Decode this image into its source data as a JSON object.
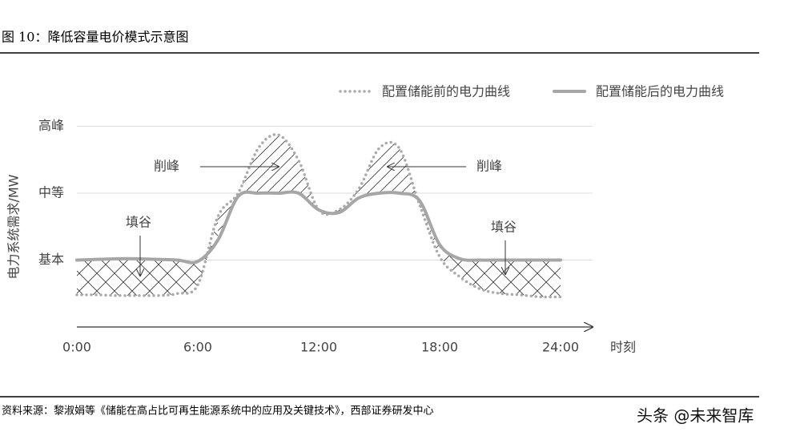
{
  "header": {
    "title": "图 10：降低容量电价模式示意图"
  },
  "chart_data": {
    "type": "line",
    "legend": "top-right",
    "x": [
      0,
      1,
      2,
      3,
      4,
      5,
      6,
      7,
      8,
      9,
      10,
      11,
      12,
      13,
      14,
      15,
      16,
      17,
      18,
      19,
      20,
      21,
      22,
      23,
      24
    ],
    "series": [
      {
        "name": "配置储能前的电力曲线",
        "color": "#aaaaaa",
        "style": "dotted",
        "values": [
          0.48,
          0.48,
          0.47,
          0.47,
          0.47,
          0.5,
          0.63,
          1.65,
          2.0,
          2.67,
          2.87,
          2.49,
          1.75,
          1.75,
          2.07,
          2.67,
          2.67,
          1.83,
          1.05,
          0.75,
          0.57,
          0.5,
          0.48,
          0.45,
          0.45
        ]
      },
      {
        "name": "配置储能后的电力曲线",
        "color": "#a6a6a6",
        "style": "solid",
        "values": [
          1.0,
          1.01,
          1.02,
          1.02,
          1.01,
          1.0,
          0.98,
          1.3,
          1.95,
          2.0,
          2.0,
          2.0,
          1.75,
          1.71,
          1.93,
          2.0,
          2.0,
          1.89,
          1.23,
          1.02,
          1.0,
          1.0,
          1.0,
          1.0,
          1.0
        ]
      }
    ],
    "xlim": [
      0,
      24
    ],
    "ylim": [
      0,
      3.2
    ],
    "xticks": [
      {
        "value": 0,
        "label": "0:00"
      },
      {
        "value": 6,
        "label": "6:00"
      },
      {
        "value": 12,
        "label": "12:00"
      },
      {
        "value": 18,
        "label": "18:00"
      },
      {
        "value": 24,
        "label": "24:00"
      }
    ],
    "yticks": [
      {
        "value": 1,
        "label": "基本"
      },
      {
        "value": 2,
        "label": "中等"
      },
      {
        "value": 3,
        "label": "高峰"
      }
    ],
    "grid": true,
    "x_label": "时刻",
    "y_label": "电力系统需求/MW",
    "annotations": [
      "削峰",
      "削峰",
      "填谷",
      "填谷"
    ]
  },
  "footer": {
    "source": "资料来源：黎淑娟等《储能在高占比可再生能源系统中的应用及关键技术》，西部证券研发中心",
    "watermark": "头条 @未来智库"
  }
}
